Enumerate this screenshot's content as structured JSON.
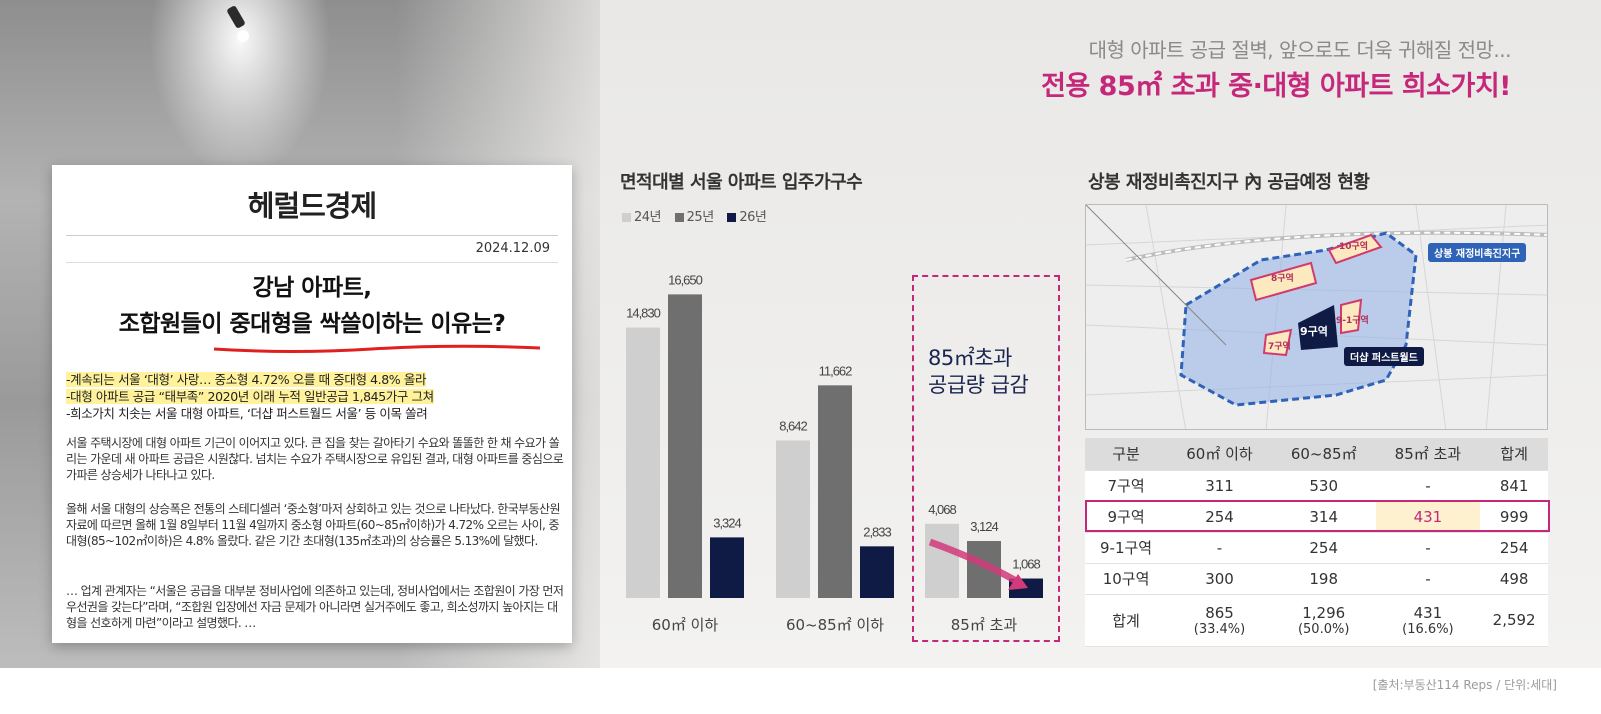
{
  "headline": {
    "sub": "대형 아파트 공급 절벽, 앞으로도 더욱 귀해질 전망...",
    "main": "전용 85㎡ 초과 중·대형 아파트 희소가치!"
  },
  "news": {
    "logo": "헤럴드경제",
    "date": "2024.12.09",
    "title_line1": "강남 아파트,",
    "title_line2": "조합원들이 중대형을 싹쓸이하는 이유는?",
    "bullets": [
      "-계속되는 서울 ‘대형’ 사랑… 중소형 4.72% 오를 때 중대형 4.8% 올라",
      "-대형 아파트 공급 “태부족” 2020년 이래 누적 일반공급 1,845가구 그쳐",
      "-희소가치 치솟는 서울 대형 아파트, ‘더샵 퍼스트월드 서울’ 등 이목 쏠려"
    ],
    "paragraphs": [
      "서울 주택시장에 대형 아파트 기근이 이어지고 있다. 큰 집을 찾는 갈아타기 수요와 똘똘한 한 채 수요가 쏠리는 가운데 새 아파트 공급은 시원찮다. 넘치는 수요가 주택시장으로 유입된 결과, 대형 아파트를 중심으로 가파른 상승세가 나타나고 있다.",
      "올해 서울 대형의 상승폭은 전통의 스테디셀러 ‘중소형’마저 상회하고 있는 것으로 나타났다. 한국부동산원 자료에 따르면 올해 1월 8일부터 11월 4일까지 중소형 아파트(60~85㎡이하)가 4.72% 오르는 사이, 중대형(85~102㎡이하)은 4.8% 올랐다. 같은 기간 초대형(135㎡초과)의 상승률은 5.13%에 달했다.",
      "… 업계 관계자는 “서울은 공급을 대부분 정비사업에 의존하고 있는데, 정비사업에서는 조합원이 가장 먼저 우선권을 갖는다”라며, “조합원 입장에선 자금 문제가 아니라면 실거주에도 좋고, 희소성까지 높아지는 대형을 선호하게 마련”이라고 설명했다. …"
    ]
  },
  "chart_data": {
    "type": "bar",
    "title": "면적대별 서울 아파트 입주가구수",
    "categories": [
      "60㎡ 이하",
      "60~85㎡ 이하",
      "85㎡ 초과"
    ],
    "series": [
      {
        "name": "24년",
        "values": [
          14830,
          8642,
          4068
        ],
        "labels": [
          "14,830",
          "8,642",
          "4,068"
        ],
        "color": "#cfcfcf"
      },
      {
        "name": "25년",
        "values": [
          16650,
          11662,
          3124
        ],
        "labels": [
          "16,650",
          "11,662",
          "3,124"
        ],
        "color": "#6f6f6f"
      },
      {
        "name": "26년",
        "values": [
          3324,
          2833,
          1068
        ],
        "labels": [
          "3,324",
          "2,833",
          "1,068"
        ],
        "color": "#0f1a45"
      }
    ],
    "ylim": [
      0,
      17000
    ],
    "legend_position": "top-left",
    "grid": false,
    "annotation": [
      "85㎡초과",
      "공급량 급감"
    ]
  },
  "map": {
    "title": "상봉 재정비촉진지구 內 공급예정 현황",
    "district_label": "상봉 재정비촉진지구",
    "project_label": "더샵 퍼스트월드",
    "zones": [
      "10구역",
      "8구역",
      "9-1구역",
      "9구역",
      "7구역"
    ]
  },
  "table": {
    "headers": [
      "구분",
      "60㎡ 이하",
      "60~85㎡",
      "85㎡ 초과",
      "합계"
    ],
    "rows": [
      [
        "7구역",
        "311",
        "530",
        "-",
        "841"
      ],
      [
        "9구역",
        "254",
        "314",
        "431",
        "999"
      ],
      [
        "9-1구역",
        "-",
        "254",
        "-",
        "254"
      ],
      [
        "10구역",
        "300",
        "198",
        "-",
        "498"
      ]
    ],
    "total": {
      "label": "합계",
      "values": [
        [
          "865",
          "(33.4%)"
        ],
        [
          "1,296",
          "(50.0%)"
        ],
        [
          "431",
          "(16.6%)"
        ],
        [
          "2,592",
          ""
        ]
      ]
    }
  },
  "source": "[출처:부동산114 Reps / 단위:세대]",
  "colors": {
    "accent": "#c5287a",
    "navy": "#0f1a45"
  }
}
